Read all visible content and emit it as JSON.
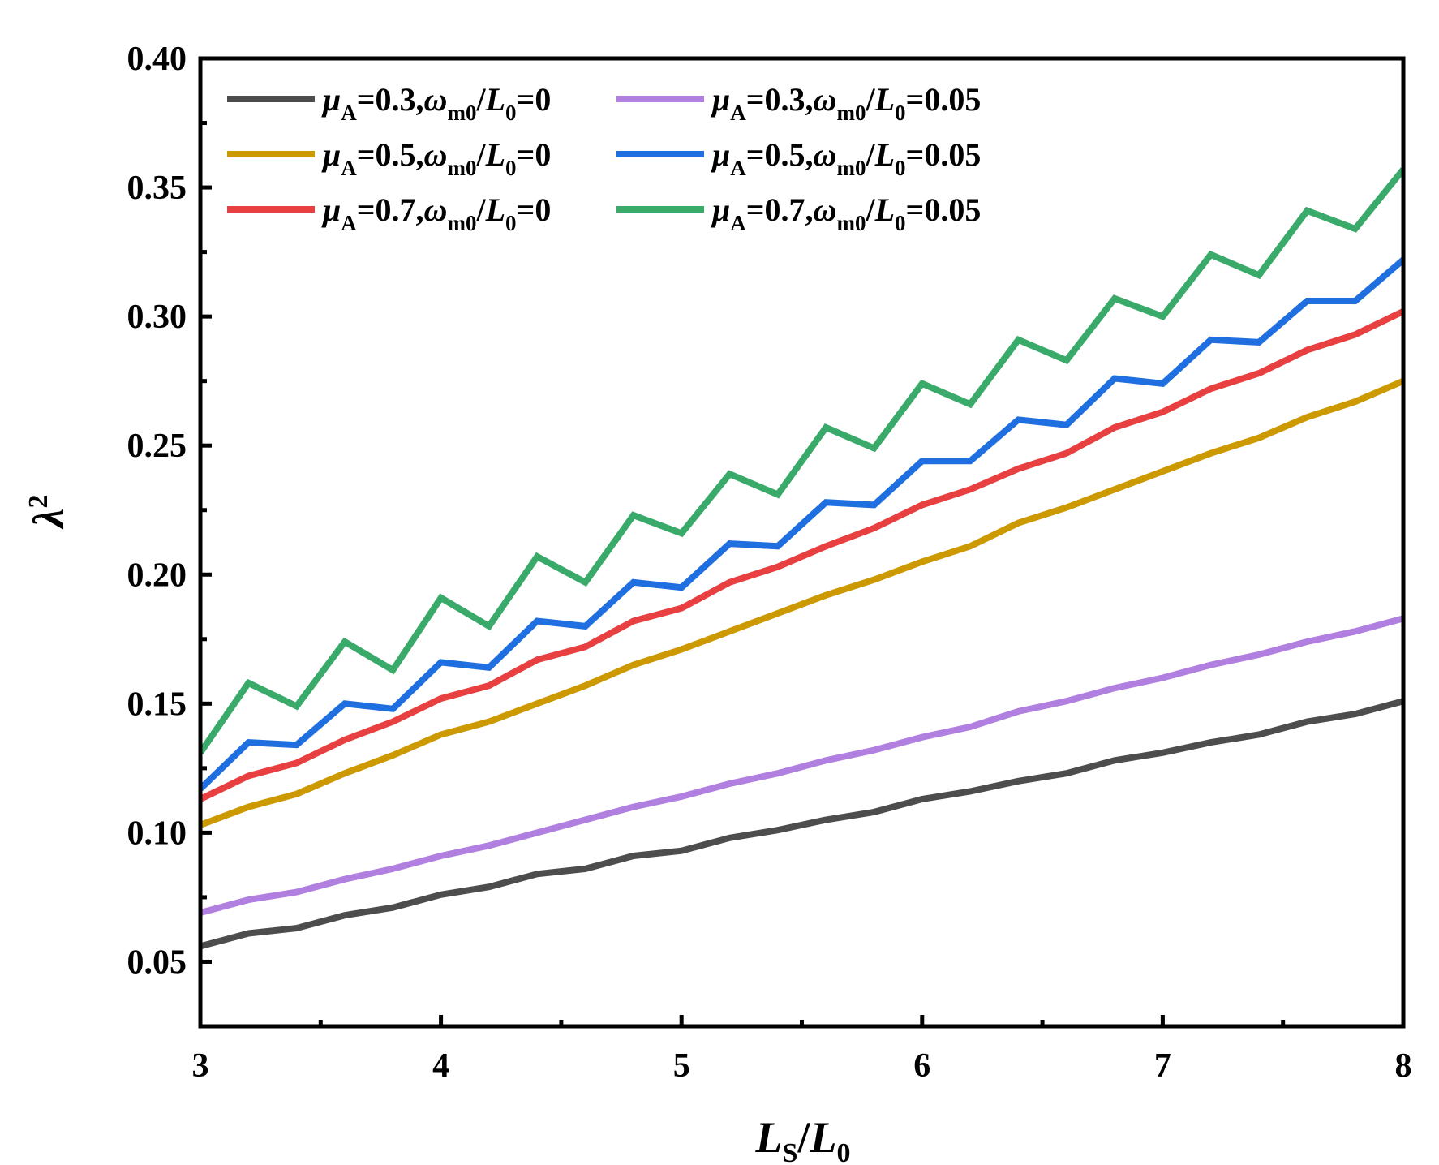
{
  "chart_data": {
    "type": "line",
    "title": "",
    "xlabel": {
      "main": "L",
      "sub": "S",
      "sep": "/",
      "main2": "L",
      "sub2": "0"
    },
    "ylabel": {
      "main": "λ",
      "sup": "2"
    },
    "xlim": [
      3,
      8
    ],
    "ylim": [
      0.025,
      0.4
    ],
    "x_ticks": [
      3,
      4,
      5,
      6,
      7,
      8
    ],
    "x_tick_labels": [
      "3",
      "4",
      "5",
      "6",
      "7",
      "8"
    ],
    "y_ticks": [
      0.05,
      0.1,
      0.15,
      0.2,
      0.25,
      0.3,
      0.35,
      0.4
    ],
    "y_tick_labels": [
      "0.05",
      "0.10",
      "0.15",
      "0.20",
      "0.25",
      "0.30",
      "0.35",
      "0.40"
    ],
    "grid": false,
    "legend_position": "top-left",
    "x": [
      3.0,
      3.2,
      3.4,
      3.6,
      3.8,
      4.0,
      4.2,
      4.4,
      4.6,
      4.8,
      5.0,
      5.2,
      5.4,
      5.6,
      5.8,
      6.0,
      6.2,
      6.4,
      6.6,
      6.8,
      7.0,
      7.2,
      7.4,
      7.6,
      7.8,
      8.0
    ],
    "series": [
      {
        "name": "μA=0.3,ωm0/L0=0",
        "legend": {
          "mu_sub": "A",
          "mu_val": "=0.3,",
          "omega_sub": "m0",
          "l_sub": "0",
          "l_val": "=0"
        },
        "color": "#4d4d4d",
        "values": [
          0.056,
          0.061,
          0.063,
          0.068,
          0.071,
          0.076,
          0.079,
          0.084,
          0.086,
          0.091,
          0.093,
          0.098,
          0.101,
          0.105,
          0.108,
          0.113,
          0.116,
          0.12,
          0.123,
          0.128,
          0.131,
          0.135,
          0.138,
          0.143,
          0.146,
          0.151
        ]
      },
      {
        "name": "μA=0.5,ωm0/L0=0",
        "legend": {
          "mu_sub": "A",
          "mu_val": "=0.5,",
          "omega_sub": "m0",
          "l_sub": "0",
          "l_val": "=0"
        },
        "color": "#cc9900",
        "values": [
          0.103,
          0.11,
          0.115,
          0.123,
          0.13,
          0.138,
          0.143,
          0.15,
          0.157,
          0.165,
          0.171,
          0.178,
          0.185,
          0.192,
          0.198,
          0.205,
          0.211,
          0.22,
          0.226,
          0.233,
          0.24,
          0.247,
          0.253,
          0.261,
          0.267,
          0.275
        ]
      },
      {
        "name": "μA=0.7,ωm0/L0=0",
        "legend": {
          "mu_sub": "A",
          "mu_val": "=0.7,",
          "omega_sub": "m0",
          "l_sub": "0",
          "l_val": "=0"
        },
        "color": "#e84040",
        "values": [
          0.113,
          0.122,
          0.127,
          0.136,
          0.143,
          0.152,
          0.157,
          0.167,
          0.172,
          0.182,
          0.187,
          0.197,
          0.203,
          0.211,
          0.218,
          0.227,
          0.233,
          0.241,
          0.247,
          0.257,
          0.263,
          0.272,
          0.278,
          0.287,
          0.293,
          0.302
        ]
      },
      {
        "name": "μA=0.3,ωm0/L0=0.05",
        "legend": {
          "mu_sub": "A",
          "mu_val": "=0.3,",
          "omega_sub": "m0",
          "l_sub": "0",
          "l_val": "=0.05"
        },
        "color": "#b07fe0",
        "values": [
          0.069,
          0.074,
          0.077,
          0.082,
          0.086,
          0.091,
          0.095,
          0.1,
          0.105,
          0.11,
          0.114,
          0.119,
          0.123,
          0.128,
          0.132,
          0.137,
          0.141,
          0.147,
          0.151,
          0.156,
          0.16,
          0.165,
          0.169,
          0.174,
          0.178,
          0.183
        ]
      },
      {
        "name": "μA=0.5,ωm0/L0=0.05",
        "legend": {
          "mu_sub": "A",
          "mu_val": "=0.5,",
          "omega_sub": "m0",
          "l_sub": "0",
          "l_val": "=0.05"
        },
        "color": "#1f6fe0",
        "values": [
          0.117,
          0.135,
          0.134,
          0.15,
          0.148,
          0.166,
          0.164,
          0.182,
          0.18,
          0.197,
          0.195,
          0.212,
          0.211,
          0.228,
          0.227,
          0.244,
          0.244,
          0.26,
          0.258,
          0.276,
          0.274,
          0.291,
          0.29,
          0.306,
          0.306,
          0.322
        ]
      },
      {
        "name": "μA=0.7,ωm0/L0=0.05",
        "legend": {
          "mu_sub": "A",
          "mu_val": "=0.7,",
          "omega_sub": "m0",
          "l_sub": "0",
          "l_val": "=0.05"
        },
        "color": "#3aaa6a",
        "values": [
          0.131,
          0.158,
          0.149,
          0.174,
          0.163,
          0.191,
          0.18,
          0.207,
          0.197,
          0.223,
          0.216,
          0.239,
          0.231,
          0.257,
          0.249,
          0.274,
          0.266,
          0.291,
          0.283,
          0.307,
          0.3,
          0.324,
          0.316,
          0.341,
          0.334,
          0.357
        ]
      }
    ]
  }
}
